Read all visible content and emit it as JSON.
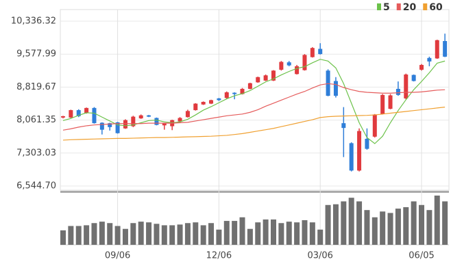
{
  "chart_data": {
    "type": "candlestick",
    "categories": [
      null,
      null,
      null,
      null,
      null,
      null,
      null,
      "09/06",
      null,
      null,
      null,
      null,
      null,
      null,
      null,
      null,
      null,
      null,
      null,
      null,
      "12/06",
      null,
      null,
      null,
      null,
      null,
      null,
      null,
      null,
      null,
      null,
      null,
      null,
      "03/06",
      null,
      null,
      null,
      null,
      null,
      null,
      null,
      null,
      null,
      null,
      null,
      null,
      "06/05",
      null,
      null,
      null
    ],
    "open": [
      8120,
      8120,
      8290,
      8220,
      8340,
      8000,
      7990,
      8010,
      7870,
      7920,
      8100,
      8170,
      8110,
      7940,
      7920,
      8030,
      8130,
      8290,
      8420,
      8440,
      8560,
      8570,
      8690,
      8660,
      8780,
      8930,
      8970,
      8970,
      9220,
      9390,
      9120,
      9210,
      9510,
      9700,
      9200,
      8960,
      7990,
      7530,
      6900,
      7630,
      7680,
      8200,
      8320,
      8780,
      8560,
      9100,
      9220,
      9490,
      9480,
      9880
    ],
    "high": [
      8160,
      8300,
      8310,
      8350,
      8360,
      8010,
      8000,
      8020,
      8080,
      8160,
      8190,
      8180,
      8120,
      8000,
      8070,
      8130,
      8300,
      8450,
      8490,
      8530,
      8570,
      8720,
      8700,
      8800,
      8920,
      9060,
      9110,
      9210,
      9420,
      9420,
      9330,
      9580,
      9740,
      9830,
      9230,
      9050,
      8360,
      7550,
      7870,
      7870,
      8200,
      8660,
      8660,
      8950,
      9130,
      9110,
      9350,
      9520,
      9910,
      10050
    ],
    "low": [
      8100,
      8110,
      8130,
      8210,
      7980,
      7730,
      7820,
      7750,
      7860,
      7900,
      8090,
      8130,
      7940,
      7840,
      7830,
      8010,
      8120,
      8280,
      8410,
      8430,
      8500,
      8550,
      8540,
      8650,
      8770,
      8920,
      8960,
      8960,
      9200,
      9300,
      9110,
      9200,
      9500,
      9570,
      8610,
      8580,
      7210,
      6880,
      6880,
      7380,
      7660,
      8190,
      8310,
      8620,
      8540,
      8950,
      9200,
      9300,
      9470,
      9510
    ],
    "close": [
      8150,
      8290,
      8150,
      8340,
      7990,
      7840,
      7900,
      7760,
      8060,
      8140,
      8170,
      8140,
      7950,
      7990,
      8060,
      8110,
      8270,
      8440,
      8480,
      8520,
      8520,
      8700,
      8660,
      8780,
      8910,
      9050,
      9090,
      9200,
      9400,
      9320,
      9300,
      9560,
      9720,
      9580,
      8620,
      8620,
      7880,
      6900,
      7810,
      7400,
      8190,
      8640,
      8630,
      8640,
      9110,
      8960,
      9330,
      9410,
      9900,
      9520
    ],
    "up_color": "#e03a3e",
    "down_color": "#2f7ed8",
    "ylim": [
      6544.7,
      10336.32
    ],
    "yticks": [
      {
        "value": 6544.7,
        "label": "6,544.70"
      },
      {
        "value": 7303.03,
        "label": "7,303.03"
      },
      {
        "value": 8061.35,
        "label": "8,061.35"
      },
      {
        "value": 8819.67,
        "label": "8,819.67"
      },
      {
        "value": 9577.99,
        "label": "9,577.99"
      },
      {
        "value": 10336.32,
        "label": "10,336.32"
      }
    ],
    "grid": true,
    "legend_position": "top-right",
    "moving_averages": [
      {
        "name": "5",
        "color": "#6cc24a",
        "values": [
          8050,
          8100,
          8170,
          8230,
          8220,
          8130,
          8040,
          7950,
          7930,
          7950,
          8000,
          8050,
          8060,
          8020,
          8000,
          8020,
          8080,
          8180,
          8290,
          8370,
          8460,
          8550,
          8620,
          8670,
          8740,
          8840,
          8940,
          9010,
          9100,
          9180,
          9250,
          9290,
          9380,
          9460,
          9420,
          9260,
          8900,
          8450,
          8000,
          7660,
          7520,
          7690,
          8000,
          8280,
          8530,
          8760,
          8950,
          9150,
          9370,
          9420
        ]
      },
      {
        "name": "20",
        "color": "#e55b5b",
        "values": [
          7830,
          7860,
          7900,
          7930,
          7950,
          7960,
          7970,
          7980,
          7980,
          7980,
          7980,
          7990,
          7990,
          7990,
          7990,
          8000,
          8010,
          8040,
          8070,
          8100,
          8130,
          8160,
          8180,
          8200,
          8240,
          8300,
          8380,
          8450,
          8520,
          8590,
          8660,
          8720,
          8800,
          8870,
          8900,
          8880,
          8810,
          8760,
          8720,
          8700,
          8690,
          8680,
          8680,
          8690,
          8700,
          8700,
          8710,
          8730,
          8750,
          8760
        ]
      },
      {
        "name": "60",
        "color": "#f0a030",
        "values": [
          7600,
          7610,
          7615,
          7620,
          7625,
          7630,
          7635,
          7640,
          7640,
          7645,
          7650,
          7655,
          7660,
          7660,
          7665,
          7670,
          7675,
          7680,
          7685,
          7690,
          7700,
          7710,
          7730,
          7750,
          7780,
          7810,
          7840,
          7870,
          7910,
          7950,
          7990,
          8030,
          8070,
          8120,
          8140,
          8150,
          8155,
          8160,
          8165,
          8170,
          8180,
          8200,
          8220,
          8240,
          8260,
          8280,
          8300,
          8320,
          8340,
          8360
        ]
      }
    ],
    "volume": {
      "color": "#707070",
      "values": [
        20,
        26,
        26,
        27,
        30,
        32,
        30,
        26,
        22,
        30,
        32,
        31,
        29,
        27,
        27,
        28,
        30,
        31,
        27,
        30,
        21,
        33,
        33,
        38,
        22,
        31,
        35,
        35,
        30,
        32,
        31,
        34,
        31,
        21,
        55,
        56,
        60,
        65,
        60,
        48,
        38,
        46,
        44,
        50,
        52,
        60,
        55,
        48,
        68,
        60
      ]
    }
  }
}
